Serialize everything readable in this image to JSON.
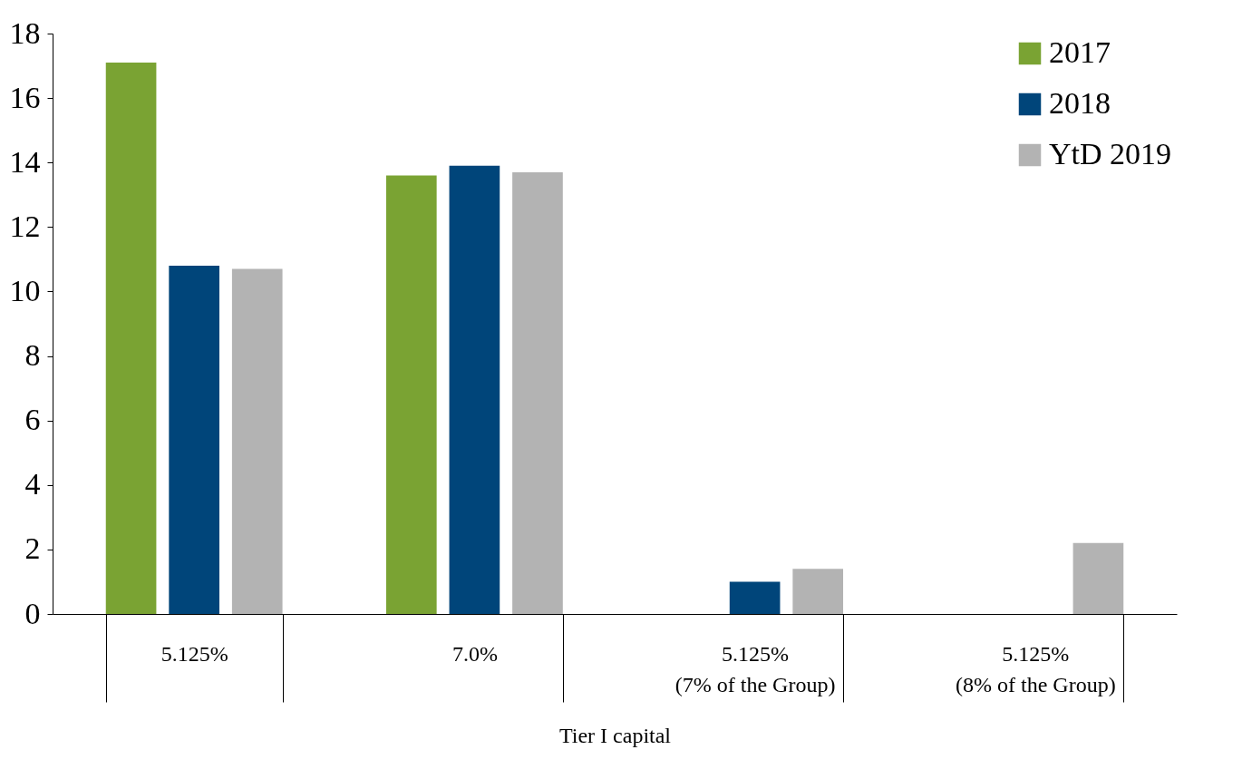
{
  "chart_data": {
    "type": "bar",
    "xlabel": "Tier I capital",
    "categories": [
      "5.125%",
      "7.0%",
      "5.125%\n(7% of the Group)",
      "5.125%\n(8% of the Group)"
    ],
    "series": [
      {
        "name": "2017",
        "color": "#7aa333",
        "values": [
          17.1,
          13.6,
          null,
          null
        ]
      },
      {
        "name": "2018",
        "color": "#00457a",
        "values": [
          10.8,
          13.9,
          1.0,
          null
        ]
      },
      {
        "name": "YtD 2019",
        "color": "#b3b3b3",
        "values": [
          10.7,
          13.7,
          1.4,
          2.2
        ]
      }
    ],
    "ylim": [
      0,
      18
    ],
    "yticks": [
      0,
      2,
      4,
      6,
      8,
      10,
      12,
      14,
      16,
      18
    ],
    "grid": false,
    "legend": "top right"
  }
}
